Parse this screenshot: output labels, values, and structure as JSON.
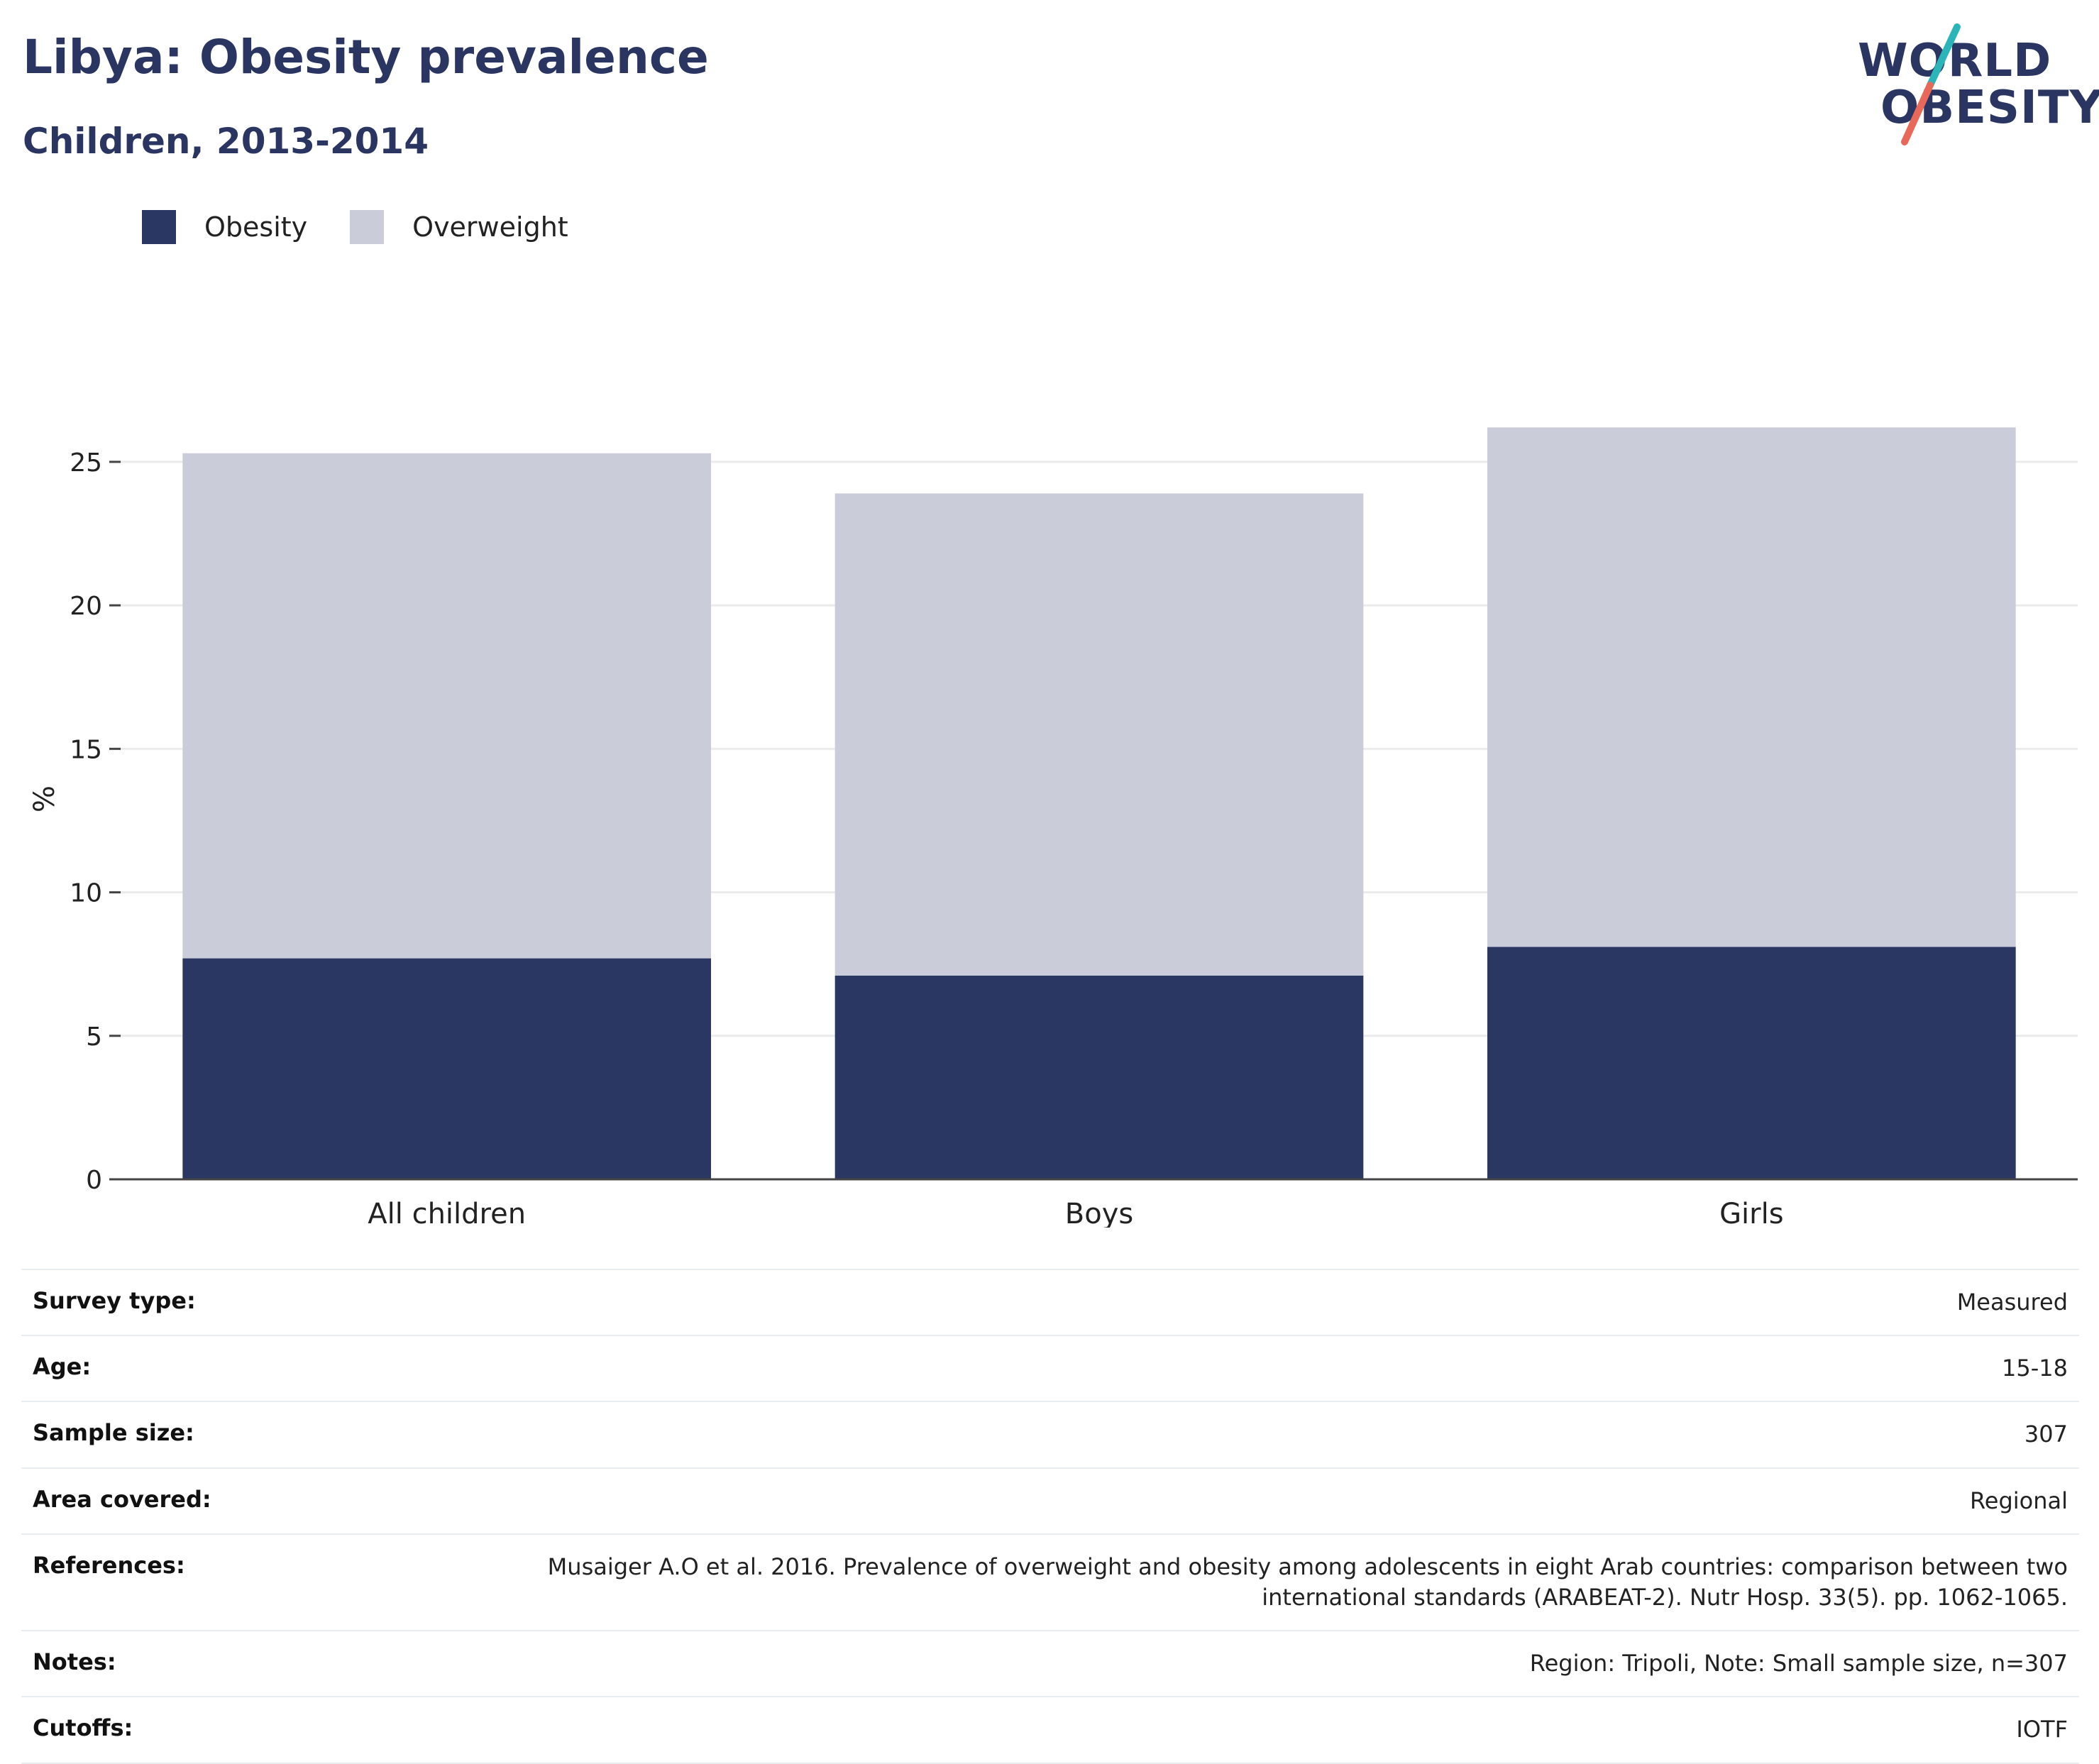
{
  "header": {
    "title": "Libya: Obesity prevalence",
    "subtitle": "Children, 2013-2014"
  },
  "logo": {
    "line1": "WORLD",
    "line2": "OBESITY",
    "colors": {
      "slash_top": "#2bb5b9",
      "slash_bottom": "#e8695a",
      "text": "#2a3561"
    }
  },
  "legend": {
    "items": [
      {
        "label": "Obesity",
        "color": "#2a3763"
      },
      {
        "label": "Overweight",
        "color": "#cacdd9"
      }
    ]
  },
  "chart_data": {
    "type": "bar",
    "stacked": true,
    "categories": [
      "All children",
      "Boys",
      "Girls"
    ],
    "series": [
      {
        "name": "Obesity",
        "values": [
          7.7,
          7.1,
          8.1
        ],
        "color": "#2a3763"
      },
      {
        "name": "Overweight",
        "values": [
          17.6,
          16.8,
          18.1
        ],
        "color": "#cacdd9"
      }
    ],
    "ylabel": "%",
    "ylim": [
      0,
      27
    ],
    "yticks": [
      0,
      5,
      10,
      15,
      20,
      25
    ],
    "grid": true,
    "legend_position": "top-left"
  },
  "info": {
    "rows": [
      {
        "key": "Survey type:",
        "value": "Measured"
      },
      {
        "key": "Age:",
        "value": "15-18"
      },
      {
        "key": "Sample size:",
        "value": "307"
      },
      {
        "key": "Area covered:",
        "value": "Regional"
      },
      {
        "key": "References:",
        "value": "Musaiger A.O et al. 2016. Prevalence of overweight and obesity among adolescents in eight Arab countries: comparison between two international standards (ARABEAT-2). Nutr Hosp. 33(5). pp. 1062-1065."
      },
      {
        "key": "Notes:",
        "value": "Region: Tripoli, Note: Small sample size, n=307"
      },
      {
        "key": "Cutoffs:",
        "value": "IOTF"
      }
    ]
  }
}
